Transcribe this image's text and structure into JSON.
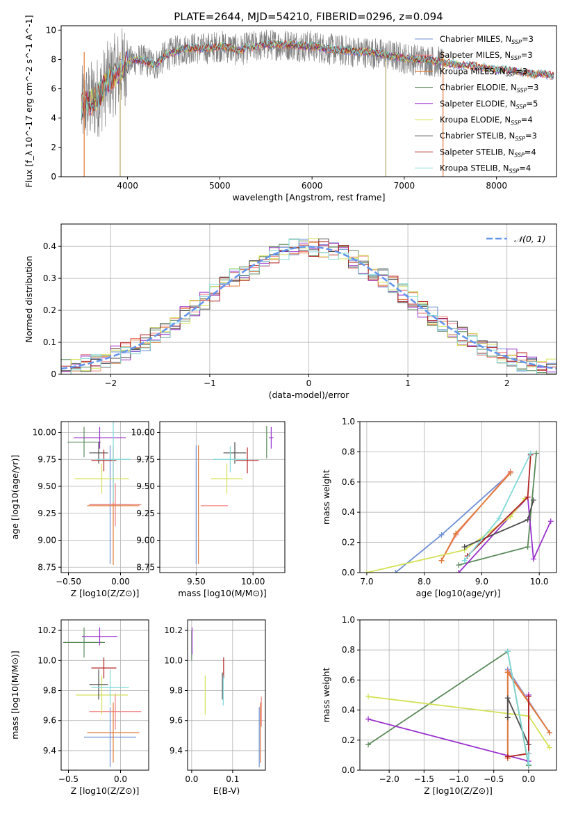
{
  "figure_title": "PLATE=2644, MJD=54210, FIBERID=0296, z=0.094",
  "palette": {
    "data_spectrum": "#808080",
    "axis": "#000000",
    "grid": "#b0b0b0",
    "normal_curve": "#6495ed"
  },
  "fits": [
    {
      "label": "Chabrier MILES, N_SSP=3",
      "color": "#6b8fd4"
    },
    {
      "label": "Salpeter MILES, N_SSP=3",
      "color": "#f08080"
    },
    {
      "label": "Kroupa MILES, N_SSP=3",
      "color": "#e07b39"
    },
    {
      "label": "Chabrier ELODIE, N_SSP=3",
      "color": "#5a8a5a"
    },
    {
      "label": "Salpeter ELODIE, N_SSP=5",
      "color": "#9932cc"
    },
    {
      "label": "Kroupa ELODIE, N_SSP=4",
      "color": "#d4e157"
    },
    {
      "label": "Chabrier STELIB, N_SSP=3",
      "color": "#4d4d4d"
    },
    {
      "label": "Salpeter STELIB, N_SSP=4",
      "color": "#b22222"
    },
    {
      "label": "Kroupa STELIB, N_SSP=4",
      "color": "#7fd8d8"
    }
  ],
  "chart_data": [
    {
      "id": "spectrum",
      "type": "line",
      "xlabel": "wavelength [Angstrom, rest frame]",
      "ylabel": "Flux [f_λ 10^-17 erg cm^-2 s^-1 A^-1]",
      "xlim": [
        3280,
        8650
      ],
      "ylim": [
        0,
        10.3
      ],
      "xticks": [
        4000,
        5000,
        6000,
        7000,
        8000
      ],
      "yticks": [
        0,
        2,
        4,
        6,
        8,
        10
      ],
      "grid": false,
      "legend_position": "right",
      "continuum_x": [
        3500,
        3550,
        3600,
        3650,
        3700,
        3800,
        3900,
        4000,
        4100,
        4200,
        4300,
        4400,
        4500,
        4600,
        4700,
        4800,
        4900,
        5000,
        5100,
        5200,
        5300,
        5400,
        5500,
        5600,
        5700,
        5800,
        5900,
        6000,
        6100,
        6200,
        6300,
        6400,
        6500,
        6600,
        6700,
        6800,
        6900,
        7000,
        7100,
        7200,
        7300,
        7400,
        7500,
        7600,
        7700,
        7800,
        7900,
        8000,
        8100,
        8200,
        8300,
        8400,
        8500,
        8600
      ],
      "continuum_y": [
        4.7,
        5.0,
        5.1,
        5.3,
        5.6,
        6.6,
        7.2,
        7.8,
        8.0,
        7.9,
        7.6,
        8.2,
        8.5,
        8.7,
        8.8,
        8.7,
        8.8,
        8.9,
        8.8,
        8.6,
        8.8,
        8.9,
        9.0,
        9.0,
        9.0,
        9.0,
        8.9,
        8.9,
        8.8,
        8.7,
        8.6,
        8.6,
        8.5,
        8.5,
        8.4,
        8.3,
        8.2,
        8.1,
        8.0,
        8.0,
        7.9,
        7.8,
        7.7,
        7.6,
        7.6,
        7.5,
        7.4,
        7.3,
        7.3,
        7.2,
        7.1,
        7.0,
        7.0,
        6.9
      ],
      "data_noise_amplitude": 1.1,
      "data_range": [
        3500,
        7420
      ],
      "model_range": [
        3500,
        8620
      ],
      "bad_pixels": [
        {
          "x": 3920,
          "color": "#b3a060"
        },
        {
          "x": 6800,
          "color": "#b3a060"
        },
        {
          "x": 7420,
          "color": "#e07b39"
        },
        {
          "x": 3530,
          "color": "#e07b39"
        }
      ]
    },
    {
      "id": "residuals",
      "type": "bar",
      "xlabel": "(data-model)/error",
      "ylabel": "Normed distribution",
      "xlim": [
        -2.5,
        2.5
      ],
      "ylim": [
        0,
        0.47
      ],
      "xticks": [
        -2,
        -1,
        0,
        1,
        2
      ],
      "yticks": [
        0,
        0.1,
        0.2,
        0.3,
        0.4
      ],
      "grid": true,
      "legend_label": "𝒩(0, 1)",
      "legend_position": "top-right",
      "bin_width": 0.1
    },
    {
      "id": "age_vs_Z",
      "type": "scatter",
      "xlabel": "Z [log10(Z/Z⊙)]",
      "ylabel": "age [log10(age/yr)]",
      "xlim": [
        -0.57,
        0.27
      ],
      "ylim": [
        8.7,
        10.1
      ],
      "xticks": [
        -0.5,
        0.0
      ],
      "yticks": [
        8.75,
        9.0,
        9.25,
        9.5,
        9.75,
        10.0
      ],
      "grid": true,
      "points": [
        {
          "x": -0.1,
          "y": 9.33,
          "xerr": 0.2,
          "yerr": 0.55,
          "fit": 0
        },
        {
          "x": -0.05,
          "y": 9.33,
          "xerr": 0.25,
          "yerr": 0.2,
          "fit": 1
        },
        {
          "x": -0.07,
          "y": 9.32,
          "xerr": 0.25,
          "yerr": 0.55,
          "fit": 2
        },
        {
          "x": -0.35,
          "y": 9.91,
          "xerr": 0.16,
          "yerr": 0.14,
          "fit": 3
        },
        {
          "x": -0.2,
          "y": 9.95,
          "xerr": 0.25,
          "yerr": 0.1,
          "fit": 4
        },
        {
          "x": -0.18,
          "y": 9.57,
          "xerr": 0.26,
          "yerr": 0.14,
          "fit": 5
        },
        {
          "x": -0.21,
          "y": 9.81,
          "xerr": 0.09,
          "yerr": 0.1,
          "fit": 6
        },
        {
          "x": -0.16,
          "y": 9.74,
          "xerr": 0.12,
          "yerr": 0.1,
          "fit": 7
        },
        {
          "x": -0.07,
          "y": 9.75,
          "xerr": 0.16,
          "yerr": 0.4,
          "fit": 8
        }
      ]
    },
    {
      "id": "age_vs_mass",
      "type": "scatter",
      "xlabel": "mass [log10(M/M⊙)]",
      "ylabel": "",
      "xlim": [
        9.18,
        10.28
      ],
      "ylim": [
        8.7,
        10.1
      ],
      "xticks": [
        9.5,
        10.0
      ],
      "yticks": [
        8.75,
        9.0,
        9.25,
        9.5,
        9.75,
        10.0
      ],
      "grid": true,
      "points": [
        {
          "x": 9.5,
          "y": 9.33,
          "xerr": 0.0,
          "yerr": 0.55,
          "fit": 0
        },
        {
          "x": 9.66,
          "y": 9.32,
          "xerr": 0.12,
          "yerr": 0.0,
          "fit": 1
        },
        {
          "x": 9.52,
          "y": 9.33,
          "xerr": 0.0,
          "yerr": 0.55,
          "fit": 2
        },
        {
          "x": 10.12,
          "y": 9.91,
          "xerr": 0.0,
          "yerr": 0.15,
          "fit": 3
        },
        {
          "x": 10.16,
          "y": 9.95,
          "xerr": 0.02,
          "yerr": 0.1,
          "fit": 4
        },
        {
          "x": 9.77,
          "y": 9.57,
          "xerr": 0.14,
          "yerr": 0.14,
          "fit": 5
        },
        {
          "x": 9.84,
          "y": 9.81,
          "xerr": 0.1,
          "yerr": 0.1,
          "fit": 6
        },
        {
          "x": 9.95,
          "y": 9.74,
          "xerr": 0.1,
          "yerr": 0.12,
          "fit": 7
        },
        {
          "x": 9.8,
          "y": 9.75,
          "xerr": 0.15,
          "yerr": 0.12,
          "fit": 8
        }
      ]
    },
    {
      "id": "weight_vs_age",
      "type": "line",
      "xlabel": "age [log10(age/yr)]",
      "ylabel": "mass weight",
      "xlim": [
        6.88,
        10.3
      ],
      "ylim": [
        0,
        1.0
      ],
      "xticks": [
        7,
        8,
        9,
        10
      ],
      "yticks": [
        0.0,
        0.2,
        0.4,
        0.6,
        0.8,
        1.0
      ],
      "grid": true,
      "series": [
        {
          "fit": 0,
          "x": [
            7.5,
            8.3,
            9.5
          ],
          "y": [
            0.0,
            0.25,
            0.66
          ]
        },
        {
          "fit": 1,
          "x": [
            8.3,
            8.55,
            9.5
          ],
          "y": [
            0.08,
            0.25,
            0.67
          ]
        },
        {
          "fit": 2,
          "x": [
            8.3,
            8.55,
            9.5
          ],
          "y": [
            0.08,
            0.26,
            0.66
          ]
        },
        {
          "fit": 3,
          "x": [
            8.6,
            9.8,
            9.95
          ],
          "y": [
            0.05,
            0.17,
            0.79
          ]
        },
        {
          "fit": 4,
          "x": [
            8.6,
            9.8,
            9.9,
            10.2
          ],
          "y": [
            0.0,
            0.5,
            0.09,
            0.34
          ]
        },
        {
          "fit": 5,
          "x": [
            7.0,
            8.7,
            9.5,
            9.75
          ],
          "y": [
            0.0,
            0.15,
            0.37,
            0.49
          ]
        },
        {
          "fit": 6,
          "x": [
            8.7,
            9.8,
            9.9
          ],
          "y": [
            0.17,
            0.35,
            0.48
          ]
        },
        {
          "fit": 7,
          "x": [
            8.75,
            9.8,
            9.85
          ],
          "y": [
            0.11,
            0.5,
            0.78
          ]
        },
        {
          "fit": 8,
          "x": [
            8.7,
            9.3,
            9.85
          ],
          "y": [
            0.08,
            0.36,
            0.79
          ]
        }
      ]
    },
    {
      "id": "mass_vs_Z",
      "type": "scatter",
      "xlabel": "Z [log10(Z/Z⊙)]",
      "ylabel": "mass [log10(M/M⊙)]",
      "xlim": [
        -0.57,
        0.27
      ],
      "ylim": [
        9.27,
        10.27
      ],
      "xticks": [
        -0.5,
        0.0
      ],
      "yticks": [
        9.4,
        9.6,
        9.8,
        10.0,
        10.2
      ],
      "grid": true,
      "points": [
        {
          "x": -0.1,
          "y": 9.49,
          "xerr": 0.25,
          "yerr": 0.2,
          "fit": 0
        },
        {
          "x": -0.05,
          "y": 9.66,
          "xerr": 0.25,
          "yerr": 0.12,
          "fit": 1
        },
        {
          "x": -0.07,
          "y": 9.52,
          "xerr": 0.25,
          "yerr": 0.2,
          "fit": 2
        },
        {
          "x": -0.35,
          "y": 10.12,
          "xerr": 0.2,
          "yerr": 0.1,
          "fit": 3
        },
        {
          "x": -0.2,
          "y": 10.16,
          "xerr": 0.17,
          "yerr": 0.06,
          "fit": 4
        },
        {
          "x": -0.18,
          "y": 9.77,
          "xerr": 0.25,
          "yerr": 0.13,
          "fit": 5
        },
        {
          "x": -0.21,
          "y": 9.84,
          "xerr": 0.09,
          "yerr": 0.1,
          "fit": 6
        },
        {
          "x": -0.16,
          "y": 9.95,
          "xerr": 0.12,
          "yerr": 0.07,
          "fit": 7
        },
        {
          "x": -0.1,
          "y": 9.82,
          "xerr": 0.18,
          "yerr": 0.12,
          "fit": 8
        }
      ]
    },
    {
      "id": "mass_vs_ebv",
      "type": "scatter",
      "xlabel": "E(B-V)",
      "ylabel": "",
      "xlim": [
        -0.01,
        0.18
      ],
      "ylim": [
        9.27,
        10.27
      ],
      "xticks": [
        0.0,
        0.1
      ],
      "yticks": [
        9.4,
        9.6,
        9.8,
        10.0,
        10.2
      ],
      "grid": true,
      "points": [
        {
          "x": 0.165,
          "y": 9.49,
          "xerr": 0.0,
          "yerr": 0.2,
          "fit": 0
        },
        {
          "x": 0.17,
          "y": 9.66,
          "xerr": 0.0,
          "yerr": 0.1,
          "fit": 1
        },
        {
          "x": 0.168,
          "y": 9.52,
          "xerr": 0.0,
          "yerr": 0.2,
          "fit": 2
        },
        {
          "x": 0.0,
          "y": 10.1,
          "xerr": 0.0,
          "yerr": 0.1,
          "fit": 3
        },
        {
          "x": 0.001,
          "y": 10.13,
          "xerr": 0.0,
          "yerr": 0.09,
          "fit": 4
        },
        {
          "x": 0.033,
          "y": 9.77,
          "xerr": 0.0,
          "yerr": 0.13,
          "fit": 5
        },
        {
          "x": 0.075,
          "y": 9.83,
          "xerr": 0.0,
          "yerr": 0.09,
          "fit": 6
        },
        {
          "x": 0.078,
          "y": 9.95,
          "xerr": 0.0,
          "yerr": 0.07,
          "fit": 7
        },
        {
          "x": 0.077,
          "y": 9.8,
          "xerr": 0.0,
          "yerr": 0.1,
          "fit": 8
        }
      ]
    },
    {
      "id": "weight_vs_Z",
      "type": "line",
      "xlabel": "Z [log10(Z/Z⊙)]",
      "ylabel": "mass weight",
      "xlim": [
        -2.42,
        0.4
      ],
      "ylim": [
        0,
        1.0
      ],
      "xticks": [
        -2.0,
        -1.5,
        -1.0,
        -0.5,
        0.0
      ],
      "yticks": [
        0.0,
        0.2,
        0.4,
        0.6,
        0.8,
        1.0
      ],
      "grid": true,
      "series": [
        {
          "fit": 0,
          "x": [
            -0.3,
            -0.3,
            0.3
          ],
          "y": [
            0.08,
            0.67,
            0.25
          ]
        },
        {
          "fit": 1,
          "x": [
            -0.3,
            -0.3,
            0.3
          ],
          "y": [
            0.08,
            0.66,
            0.25
          ]
        },
        {
          "fit": 2,
          "x": [
            -0.3,
            -0.3,
            0.3
          ],
          "y": [
            0.08,
            0.65,
            0.25
          ]
        },
        {
          "fit": 3,
          "x": [
            -2.3,
            -0.3,
            0.0
          ],
          "y": [
            0.17,
            0.79,
            0.03
          ]
        },
        {
          "fit": 4,
          "x": [
            -2.3,
            0.0,
            0.0
          ],
          "y": [
            0.34,
            0.06,
            0.5
          ]
        },
        {
          "fit": 5,
          "x": [
            -2.3,
            0.0,
            0.3
          ],
          "y": [
            0.49,
            0.36,
            0.15
          ]
        },
        {
          "fit": 6,
          "x": [
            -0.3,
            -0.3,
            0.0
          ],
          "y": [
            0.35,
            0.48,
            0.17
          ]
        },
        {
          "fit": 7,
          "x": [
            -0.3,
            0.0,
            0.0
          ],
          "y": [
            0.09,
            0.11,
            0.49
          ]
        },
        {
          "fit": 8,
          "x": [
            -0.3,
            0.0,
            0.0
          ],
          "y": [
            0.79,
            0.04,
            0.11
          ]
        }
      ]
    }
  ]
}
